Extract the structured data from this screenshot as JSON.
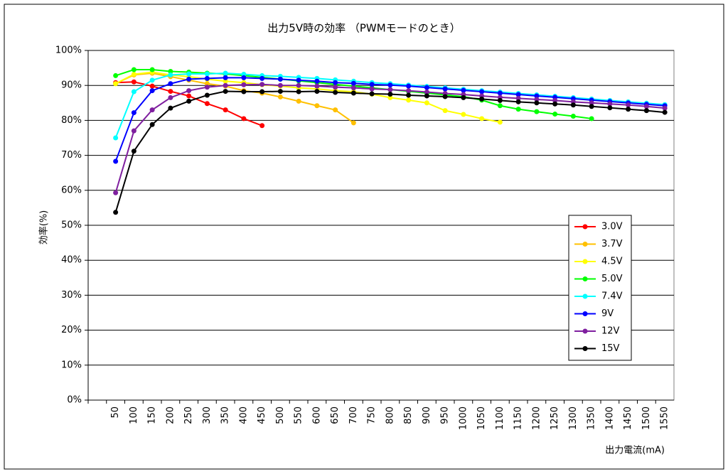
{
  "chart_data": {
    "type": "line",
    "title": "出力5V時の効率 （PWMモードのとき）",
    "y_label": "効率(%)",
    "x_label": "出力電流(mA)",
    "categories": [
      null,
      "50",
      "100",
      "150",
      "200",
      "250",
      "300",
      "350",
      "400",
      "450",
      "500",
      "550",
      "600",
      "650",
      "700",
      "750",
      "800",
      "850",
      "900",
      "950",
      "1000",
      "1050",
      "1100",
      "1150",
      "1200",
      "1250",
      "1300",
      "1350",
      "1400",
      "1450",
      "1500",
      "1550"
    ],
    "ylim": [
      0,
      100
    ],
    "yticks": [
      {
        "value": 0,
        "label": "0%"
      },
      {
        "value": 10,
        "label": "10%"
      },
      {
        "value": 20,
        "label": "20%"
      },
      {
        "value": 30,
        "label": "30%"
      },
      {
        "value": 40,
        "label": "40%"
      },
      {
        "value": 50,
        "label": "50%"
      },
      {
        "value": 60,
        "label": "60%"
      },
      {
        "value": 70,
        "label": "70%"
      },
      {
        "value": 80,
        "label": "80%"
      },
      {
        "value": 90,
        "label": "90%"
      },
      {
        "value": 100,
        "label": "100%"
      }
    ],
    "grid": true,
    "legend": "right",
    "series": [
      {
        "name": "3.0V",
        "color": "#ff0000",
        "values": [
          null,
          90.8,
          91,
          89.8,
          88.3,
          87,
          84.8,
          83,
          80.5,
          78.5,
          null,
          null,
          null,
          null,
          null,
          null,
          null,
          null,
          null,
          null,
          null,
          null,
          null,
          null,
          null,
          null,
          null,
          null,
          null,
          null,
          null,
          null
        ]
      },
      {
        "name": "3.7V",
        "color": "#ffc000",
        "values": [
          null,
          90.5,
          93,
          93.5,
          92.5,
          91.5,
          90.5,
          89.8,
          88.5,
          87.8,
          86.7,
          85.5,
          84.2,
          83,
          79.3,
          null,
          null,
          null,
          null,
          null,
          null,
          null,
          null,
          null,
          null,
          null,
          null,
          null,
          null,
          null,
          null,
          null
        ]
      },
      {
        "name": "4.5V",
        "color": "#ffff00",
        "values": [
          null,
          90.5,
          93.2,
          93.8,
          93,
          92.5,
          91.8,
          91.2,
          90.8,
          90.2,
          89.8,
          89.3,
          89,
          88.5,
          88.2,
          87.5,
          86.5,
          85.8,
          85,
          82.8,
          81.7,
          80.5,
          79.5,
          null,
          null,
          null,
          null,
          null,
          null,
          null,
          null,
          null
        ]
      },
      {
        "name": "5.0V",
        "color": "#00ff00",
        "values": [
          null,
          92.8,
          94.5,
          94.5,
          94,
          93.8,
          93.5,
          93.3,
          92.8,
          92.3,
          91.8,
          91.3,
          90.8,
          90.3,
          89.8,
          89.3,
          88.8,
          88.3,
          87.8,
          87.3,
          86.8,
          85.8,
          84.2,
          83.2,
          82.5,
          81.8,
          81.2,
          80.5,
          null,
          null,
          null,
          null
        ]
      },
      {
        "name": "7.4V",
        "color": "#00ffff",
        "values": [
          null,
          75,
          88.2,
          91.5,
          93,
          93.3,
          93.3,
          93.5,
          93.2,
          92.8,
          92.6,
          92.3,
          92,
          91.6,
          91.2,
          90.8,
          90.5,
          90.1,
          89.7,
          89.3,
          88.9,
          88.5,
          88.1,
          87.7,
          87.3,
          86.9,
          86.5,
          86.1,
          85.7,
          85.3,
          84.9,
          84.5
        ]
      },
      {
        "name": "9V",
        "color": "#0000ff",
        "values": [
          null,
          68.3,
          82.2,
          88.5,
          90.5,
          91.8,
          92,
          92.2,
          92.2,
          92,
          91.8,
          91.5,
          91.2,
          90.8,
          90.6,
          90.3,
          90.1,
          89.8,
          89.4,
          89,
          88.6,
          88.2,
          87.8,
          87.4,
          87,
          86.6,
          86.2,
          85.8,
          85.4,
          85,
          84.6,
          84.2
        ]
      },
      {
        "name": "12V",
        "color": "#7f1f9f",
        "values": [
          null,
          59.3,
          77,
          83,
          86.5,
          88.5,
          89.5,
          90,
          90.2,
          90.3,
          90,
          90,
          89.8,
          89.5,
          89.3,
          89,
          88.8,
          88.5,
          88.1,
          87.7,
          87.4,
          87,
          86.6,
          86.3,
          86,
          85.7,
          85.3,
          85,
          84.7,
          84.4,
          84,
          83.5
        ]
      },
      {
        "name": "15V",
        "color": "#000000",
        "values": [
          null,
          53.7,
          71.2,
          78.8,
          83.5,
          85.5,
          87.2,
          88.3,
          88.2,
          88.2,
          88.3,
          88.2,
          88.3,
          88,
          87.8,
          87.6,
          87.5,
          87.2,
          87,
          86.8,
          86.5,
          86.1,
          85.7,
          85.3,
          85,
          84.7,
          84.4,
          84,
          83.6,
          83.2,
          82.8,
          82.3
        ]
      }
    ]
  }
}
